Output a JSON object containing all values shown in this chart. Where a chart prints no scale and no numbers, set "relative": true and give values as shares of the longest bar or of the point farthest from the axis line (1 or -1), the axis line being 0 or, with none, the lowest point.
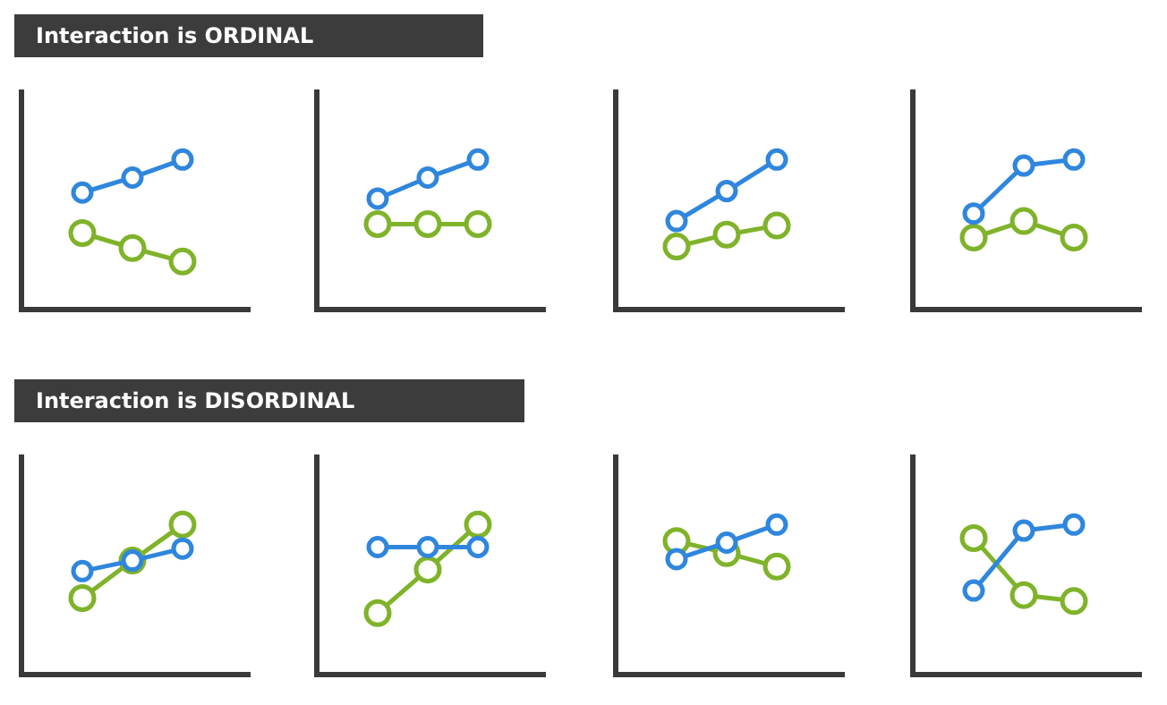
{
  "chart_data": [
    {
      "type": "line",
      "title": "Interaction is ORDINAL",
      "categories": [
        null,
        null,
        null
      ],
      "relative": true,
      "marker": "circle",
      "series": [
        {
          "color": "#2f86dd",
          "values": [
            0.78,
            0.88,
            1
          ]
        },
        {
          "color": "#7fb32a",
          "values": [
            0.51,
            0.41,
            0.32
          ]
        }
      ]
    },
    {
      "type": "line",
      "categories": [
        null,
        null,
        null
      ],
      "relative": true,
      "marker": "circle",
      "series": [
        {
          "color": "#2f86dd",
          "values": [
            0.74,
            0.88,
            1
          ]
        },
        {
          "color": "#7fb32a",
          "values": [
            0.57,
            0.57,
            0.57
          ]
        }
      ]
    },
    {
      "type": "line",
      "categories": [
        null,
        null,
        null
      ],
      "relative": true,
      "marker": "circle",
      "series": [
        {
          "color": "#2f86dd",
          "values": [
            0.59,
            0.79,
            1
          ]
        },
        {
          "color": "#7fb32a",
          "values": [
            0.42,
            0.5,
            0.56
          ]
        }
      ]
    },
    {
      "type": "line",
      "categories": [
        null,
        null,
        null
      ],
      "relative": true,
      "marker": "circle",
      "series": [
        {
          "color": "#2f86dd",
          "values": [
            0.64,
            0.96,
            1
          ]
        },
        {
          "color": "#7fb32a",
          "values": [
            0.48,
            0.59,
            0.48
          ]
        }
      ]
    },
    {
      "type": "line",
      "title": "Interaction is DISORDINAL",
      "categories": [
        null,
        null,
        null
      ],
      "relative": true,
      "marker": "circle",
      "series": [
        {
          "color": "#2f86dd",
          "values": [
            0.69,
            0.76,
            0.84
          ]
        },
        {
          "color": "#7fb32a",
          "values": [
            0.51,
            0.76,
            1
          ]
        }
      ]
    },
    {
      "type": "line",
      "categories": [
        null,
        null,
        null
      ],
      "relative": true,
      "marker": "circle",
      "series": [
        {
          "color": "#2f86dd",
          "values": [
            0.85,
            0.85,
            0.85
          ]
        },
        {
          "color": "#7fb32a",
          "values": [
            0.41,
            0.7,
            1
          ]
        }
      ]
    },
    {
      "type": "line",
      "categories": [
        null,
        null,
        null
      ],
      "relative": true,
      "marker": "circle",
      "series": [
        {
          "color": "#2f86dd",
          "values": [
            0.77,
            0.88,
            1
          ]
        },
        {
          "color": "#7fb32a",
          "values": [
            0.89,
            0.81,
            0.72
          ]
        }
      ]
    },
    {
      "type": "line",
      "categories": [
        null,
        null,
        null
      ],
      "relative": true,
      "marker": "circle",
      "series": [
        {
          "color": "#2f86dd",
          "values": [
            0.56,
            0.96,
            1
          ]
        },
        {
          "color": "#7fb32a",
          "values": [
            0.91,
            0.53,
            0.49
          ]
        }
      ]
    }
  ]
}
